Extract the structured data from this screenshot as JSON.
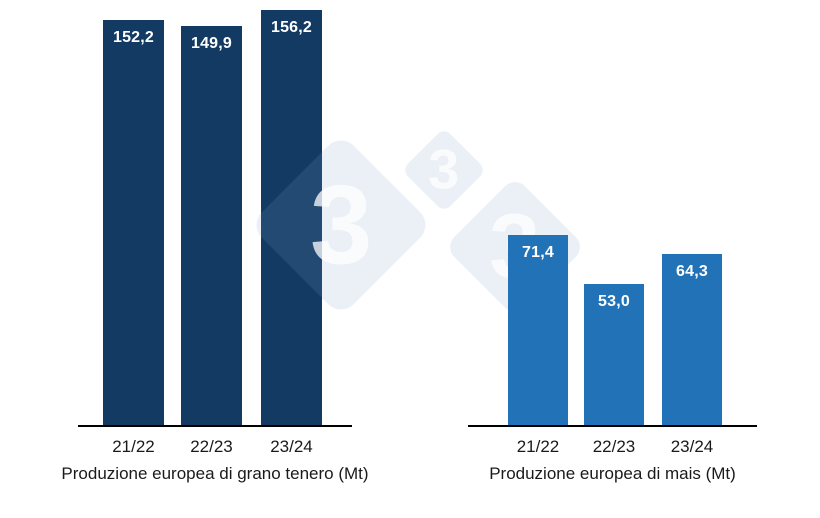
{
  "page": {
    "background_color": "#ffffff"
  },
  "watermark": {
    "digit": "3",
    "tile_color": "#7f9fc7",
    "tile_opacity": 0.16,
    "digit_color": "#ffffff",
    "digit_opacity": 0.75
  },
  "chart_data": [
    {
      "type": "bar",
      "title": "Produzione europea di grano tenero (Mt)",
      "categories": [
        "21/22",
        "22/23",
        "23/24"
      ],
      "values": [
        152.2,
        149.9,
        156.2
      ],
      "value_labels": [
        "152,2",
        "149,9",
        "156,2"
      ],
      "bar_color": "#123a63",
      "value_label_color": "#ffffff",
      "axis_color": "#000000",
      "text_color": "#1a1a1a",
      "xlabel": "",
      "ylabel": "",
      "ylim": [
        0,
        160
      ],
      "grid": false,
      "legend": false
    },
    {
      "type": "bar",
      "title": "Produzione europea di mais (Mt)",
      "categories": [
        "21/22",
        "22/23",
        "23/24"
      ],
      "values": [
        71.4,
        53.0,
        64.3
      ],
      "value_labels": [
        "71,4",
        "53,0",
        "64,3"
      ],
      "bar_color": "#2272b8",
      "value_label_color": "#ffffff",
      "axis_color": "#000000",
      "text_color": "#1a1a1a",
      "xlabel": "",
      "ylabel": "",
      "ylim": [
        0,
        160
      ],
      "grid": false,
      "legend": false
    }
  ]
}
